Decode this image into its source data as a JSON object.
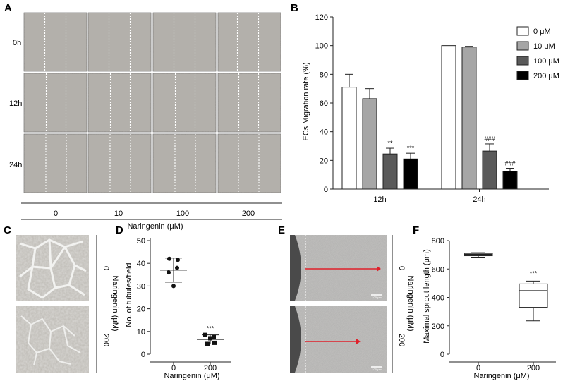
{
  "panels": {
    "A": {
      "letter": "A",
      "row_labels": [
        "0h",
        "12h",
        "24h"
      ],
      "col_labels": [
        "0",
        "10",
        "100",
        "200"
      ],
      "xlabel": "Naringenin (μM)"
    },
    "C": {
      "letter": "C",
      "side_labels": [
        "0",
        "200"
      ],
      "side_title": "Naringenin (μM)"
    },
    "E": {
      "letter": "E",
      "side_labels": [
        "0",
        "200"
      ],
      "side_title": "Naringenin (μM)",
      "scale_bar": "100 μm"
    }
  },
  "colors": {
    "image_bg": "#b3b0aa",
    "scratch_line": "#ffffff",
    "arrow": "#e0202a"
  },
  "chart_data": [
    {
      "panel": "B",
      "type": "bar",
      "categories": [
        "12h",
        "24h"
      ],
      "ylabel": "ECs Migration rate (%)",
      "ylim": [
        0,
        120
      ],
      "yticks": [
        0,
        20,
        40,
        60,
        80,
        100,
        120
      ],
      "legend_position": "top-right",
      "series": [
        {
          "name": "0 μM",
          "color": "#ffffff",
          "values": [
            71,
            100
          ],
          "errors": [
            9,
            0
          ],
          "marks": [
            "",
            ""
          ]
        },
        {
          "name": "10 μM",
          "color": "#a6a6a6",
          "values": [
            63,
            99
          ],
          "errors": [
            7,
            0.5
          ],
          "marks": [
            "",
            ""
          ]
        },
        {
          "name": "100 μM",
          "color": "#5a5a5a",
          "values": [
            24.5,
            26.5
          ],
          "errors": [
            4,
            5
          ],
          "marks": [
            "**",
            "###"
          ]
        },
        {
          "name": "200 μM",
          "color": "#000000",
          "values": [
            21,
            12.5
          ],
          "errors": [
            4,
            2
          ],
          "marks": [
            "***",
            "###"
          ]
        }
      ]
    },
    {
      "panel": "D",
      "type": "scatter",
      "categories": [
        "0",
        "200"
      ],
      "xlabel": "Naringenin (μM)",
      "ylabel": "No. of tubules/field",
      "ylim": [
        0,
        50
      ],
      "yticks": [
        0,
        10,
        20,
        30,
        40,
        50
      ],
      "groups": [
        {
          "category": "0",
          "marker": "circle",
          "points": [
            42,
            41.5,
            38,
            36,
            30
          ],
          "mean": 37,
          "sd": 5.3,
          "mark": ""
        },
        {
          "category": "200",
          "marker": "square",
          "points": [
            8.5,
            7.5,
            7,
            5,
            4.5
          ],
          "mean": 6.5,
          "sd": 2,
          "mark": "***"
        }
      ]
    },
    {
      "panel": "F",
      "type": "box",
      "categories": [
        "0",
        "200"
      ],
      "xlabel": "Naringenin (μM)",
      "ylabel": "Maximal sprout length (μm)",
      "ylim": [
        0,
        800
      ],
      "yticks": [
        0,
        200,
        400,
        600,
        800
      ],
      "boxes": [
        {
          "category": "0",
          "min": 683,
          "q1": 693,
          "median": 703,
          "q3": 710,
          "max": 715,
          "mark": ""
        },
        {
          "category": "200",
          "min": 235,
          "q1": 330,
          "median": 447,
          "q3": 495,
          "max": 515,
          "mark": "***"
        }
      ]
    }
  ]
}
